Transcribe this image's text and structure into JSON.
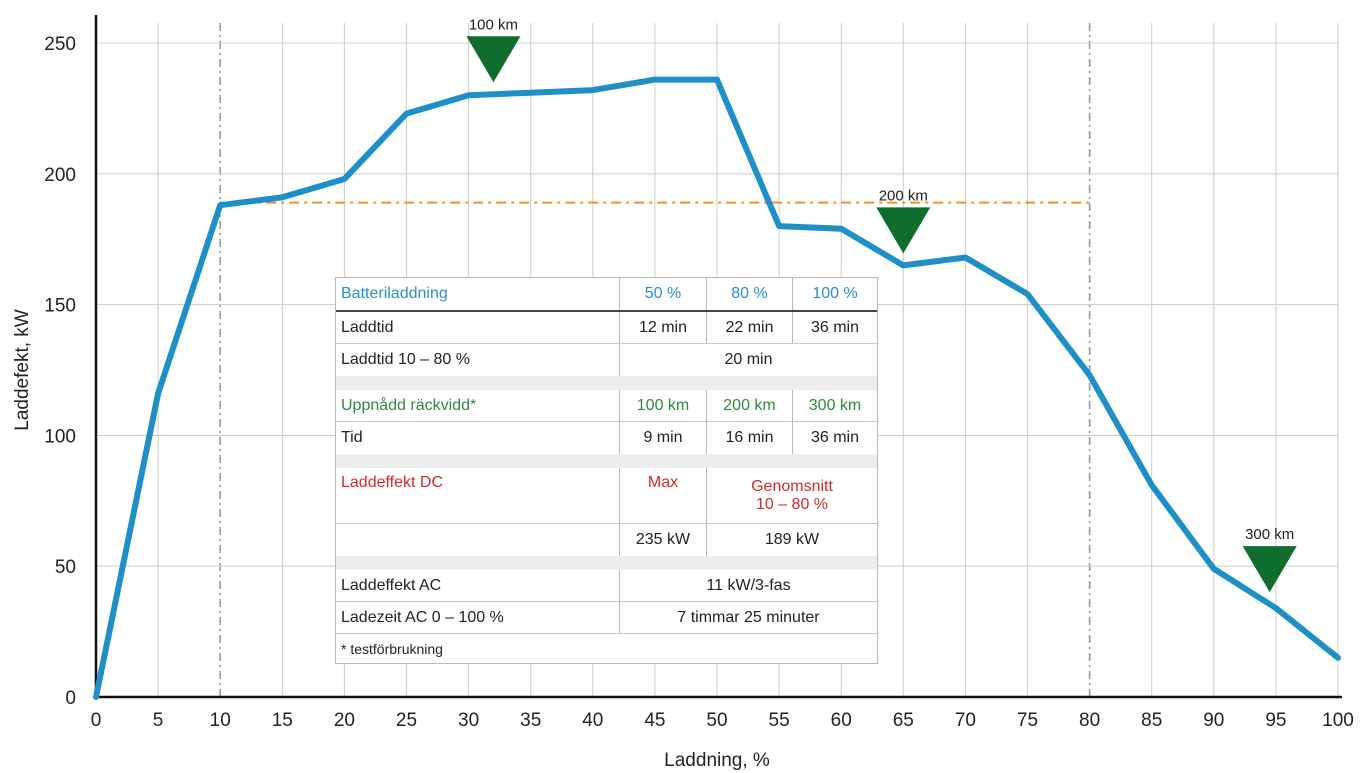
{
  "chart_data": {
    "type": "line",
    "xlabel": "Laddning, %",
    "ylabel": "Laddefekt, kW",
    "xlim": [
      0,
      100
    ],
    "ylim": [
      0,
      250
    ],
    "x_ticks": [
      0,
      5,
      10,
      15,
      20,
      25,
      30,
      35,
      40,
      45,
      50,
      55,
      60,
      65,
      70,
      75,
      80,
      85,
      90,
      95,
      100
    ],
    "y_ticks": [
      0,
      50,
      100,
      150,
      200,
      250
    ],
    "grid": true,
    "series": [
      {
        "color": "#1f8fc8",
        "x": [
          0,
          5,
          10,
          15,
          20,
          25,
          30,
          35,
          40,
          45,
          50,
          55,
          60,
          65,
          70,
          75,
          80,
          85,
          90,
          95,
          100
        ],
        "y": [
          0,
          116,
          188,
          191,
          198,
          223,
          230,
          231,
          232,
          236,
          236,
          180,
          179,
          165,
          168,
          154,
          123,
          81,
          49,
          34,
          15
        ]
      }
    ],
    "reference_lines": {
      "vertical": [
        10,
        80
      ],
      "average_power": {
        "y": 189,
        "x_from": 10,
        "x_to": 80,
        "color": "#f0931e"
      }
    },
    "range_markers": [
      {
        "label": "100 km",
        "x": 32
      },
      {
        "label": "200 km",
        "x": 65
      },
      {
        "label": "300 km",
        "x": 94.5
      }
    ],
    "marker_color": "#0f6e2e"
  },
  "table": {
    "header": {
      "label": "Batteriladdning",
      "c1": "50 %",
      "c2": "80 %",
      "c3": "100 %"
    },
    "laddtid": {
      "label": "Laddtid",
      "c1": "12 min",
      "c2": "22 min",
      "c3": "36 min"
    },
    "laddtid_10_80": {
      "label": "Laddtid 10 – 80 %",
      "value": "20 min"
    },
    "range_header": {
      "label": "Uppnådd räckvidd*",
      "c1": "100 km",
      "c2": "200 km",
      "c3": "300 km"
    },
    "tid": {
      "label": "Tid",
      "c1": "9 min",
      "c2": "16 min",
      "c3": "36 min"
    },
    "dc_header": {
      "label": "Laddeffekt DC",
      "max": "Max",
      "avg_line1": "Genomsnitt",
      "avg_line2": "10 – 80 %"
    },
    "dc_values": {
      "max": "235 kW",
      "avg": "189 kW"
    },
    "ac": {
      "label": "Laddeffekt AC",
      "value": "11 kW/3-fas"
    },
    "ac_time": {
      "label": "Ladezeit AC 0 – 100 %",
      "value": "7 timmar 25 minuter"
    },
    "note": "* testförbrukning"
  }
}
